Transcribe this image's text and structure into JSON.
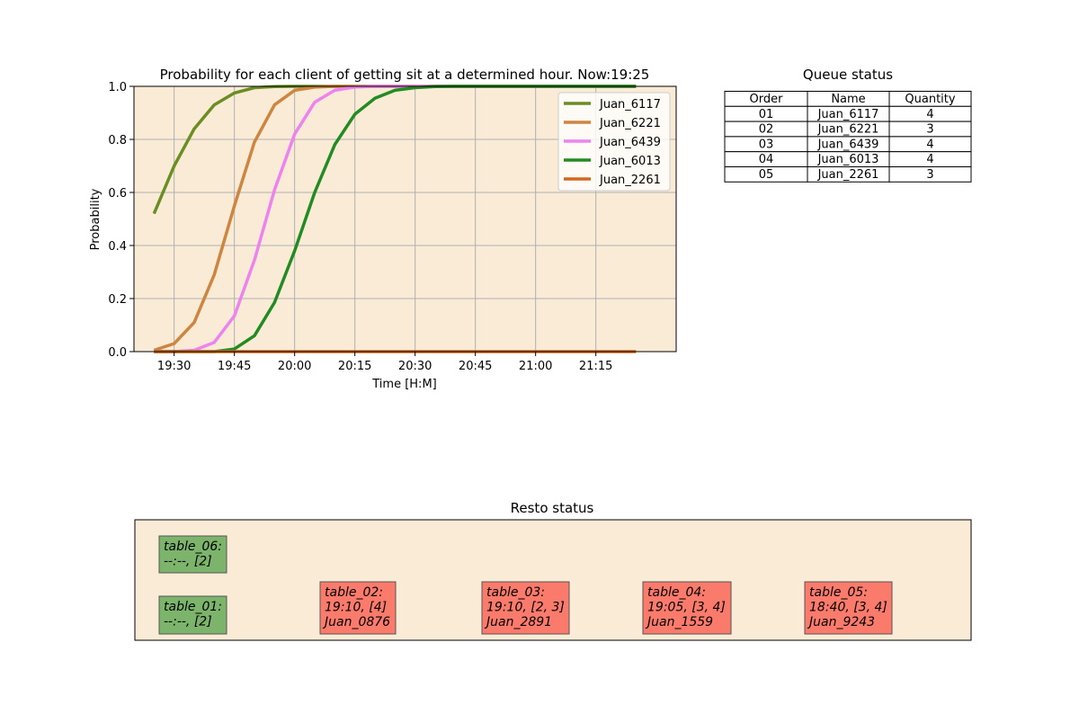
{
  "colors": {
    "panel_bg": "#faebd7",
    "grid": "#b0b0b0",
    "free_table": "#7cb46c",
    "busy_table": "#fa7a6c"
  },
  "chart_data": {
    "type": "line",
    "title": "Probability for each client of getting sit at a determined hour. Now:19:25",
    "xlabel": "Time [H:M]",
    "ylabel": "Probability",
    "ylim": [
      0,
      1.0
    ],
    "xlim": [
      "19:20",
      "21:35"
    ],
    "grid": true,
    "legend_position": "top-right",
    "x_ticks": [
      "19:30",
      "19:45",
      "20:00",
      "20:15",
      "20:30",
      "20:45",
      "21:00",
      "21:15"
    ],
    "y_ticks": [
      "0.0",
      "0.2",
      "0.4",
      "0.6",
      "0.8",
      "1.0"
    ],
    "x": [
      "19:25",
      "19:30",
      "19:35",
      "19:40",
      "19:45",
      "19:50",
      "19:55",
      "20:00",
      "20:05",
      "20:10",
      "20:15",
      "20:20",
      "20:25",
      "20:30",
      "20:35",
      "20:40",
      "20:45",
      "20:50",
      "20:55",
      "21:00",
      "21:05",
      "21:10",
      "21:15",
      "21:20",
      "21:25"
    ],
    "series": [
      {
        "name": "Juan_6117",
        "color": "#6b8e23",
        "values": [
          0.52,
          0.7,
          0.84,
          0.93,
          0.975,
          0.995,
          0.999,
          1,
          1,
          1,
          1,
          1,
          1,
          1,
          1,
          1,
          1,
          1,
          1,
          1,
          1,
          1,
          1,
          1,
          1
        ]
      },
      {
        "name": "Juan_6221",
        "color": "#cd853f",
        "values": [
          0.005,
          0.03,
          0.11,
          0.29,
          0.55,
          0.79,
          0.93,
          0.985,
          0.997,
          1,
          1,
          1,
          1,
          1,
          1,
          1,
          1,
          1,
          1,
          1,
          1,
          1,
          1,
          1,
          1
        ]
      },
      {
        "name": "Juan_6439",
        "color": "#ee82ee",
        "values": [
          0,
          0,
          0.005,
          0.035,
          0.135,
          0.345,
          0.61,
          0.82,
          0.94,
          0.985,
          0.997,
          1,
          1,
          1,
          1,
          1,
          1,
          1,
          1,
          1,
          1,
          1,
          1,
          1,
          1
        ]
      },
      {
        "name": "Juan_6013",
        "color": "#228b22",
        "values": [
          0,
          0,
          0,
          0,
          0.01,
          0.06,
          0.185,
          0.38,
          0.6,
          0.78,
          0.895,
          0.955,
          0.985,
          0.995,
          0.999,
          1,
          1,
          1,
          1,
          1,
          1,
          1,
          1,
          1,
          1
        ]
      },
      {
        "name": "Juan_2261",
        "color": "#d2691e",
        "values": [
          0,
          0,
          0,
          0,
          0,
          0,
          0,
          0,
          0,
          0,
          0,
          0,
          0,
          0,
          0,
          0,
          0,
          0,
          0,
          0,
          0,
          0,
          0,
          0,
          0
        ]
      }
    ]
  },
  "queue": {
    "title": "Queue status",
    "headers": [
      "Order",
      "Name",
      "Quantity"
    ],
    "rows": [
      [
        "01",
        "Juan_6117",
        "4"
      ],
      [
        "02",
        "Juan_6221",
        "3"
      ],
      [
        "03",
        "Juan_6439",
        "4"
      ],
      [
        "04",
        "Juan_6013",
        "4"
      ],
      [
        "05",
        "Juan_2261",
        "3"
      ]
    ]
  },
  "resto": {
    "title": "Resto status",
    "tables": [
      {
        "lines": [
          "table_06:",
          "--:--, [2]"
        ],
        "status": "free"
      },
      {
        "lines": [
          "table_01:",
          "--:--, [2]"
        ],
        "status": "free"
      },
      {
        "lines": [
          "table_02:",
          "19:10, [4]",
          "Juan_0876"
        ],
        "status": "busy"
      },
      {
        "lines": [
          "table_03:",
          "19:10, [2, 3]",
          "Juan_2891"
        ],
        "status": "busy"
      },
      {
        "lines": [
          "table_04:",
          "19:05, [3, 4]",
          "Juan_1559"
        ],
        "status": "busy"
      },
      {
        "lines": [
          "table_05:",
          "18:40, [3, 4]",
          "Juan_9243"
        ],
        "status": "busy"
      }
    ]
  }
}
